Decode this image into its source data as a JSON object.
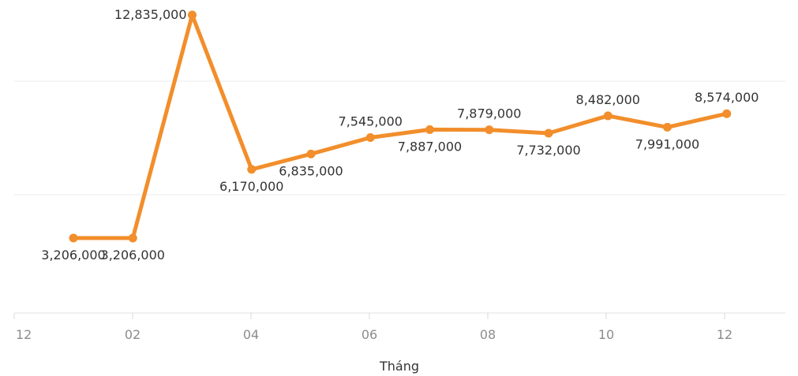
{
  "chart_data": {
    "type": "line",
    "xlabel": "Tháng",
    "ylabel": "",
    "x_tick_labels": [
      "12",
      "02",
      "04",
      "06",
      "08",
      "10",
      "12"
    ],
    "ylim": [
      0,
      14000000
    ],
    "grid": true,
    "colors": {
      "line": "#f28e2b"
    },
    "series": [
      {
        "values": [
          3206000,
          3206000,
          12835000,
          6170000,
          6835000,
          7545000,
          7887000,
          7879000,
          7732000,
          8482000,
          7991000,
          8574000
        ],
        "labels": [
          "3,206,000",
          "3,206,000",
          "12,835,000",
          "6,170,000",
          "6,835,000",
          "7,545,000",
          "7,887,000",
          "7,879,000",
          "7,732,000",
          "8,482,000",
          "7,991,000",
          "8,574,000"
        ]
      }
    ]
  }
}
